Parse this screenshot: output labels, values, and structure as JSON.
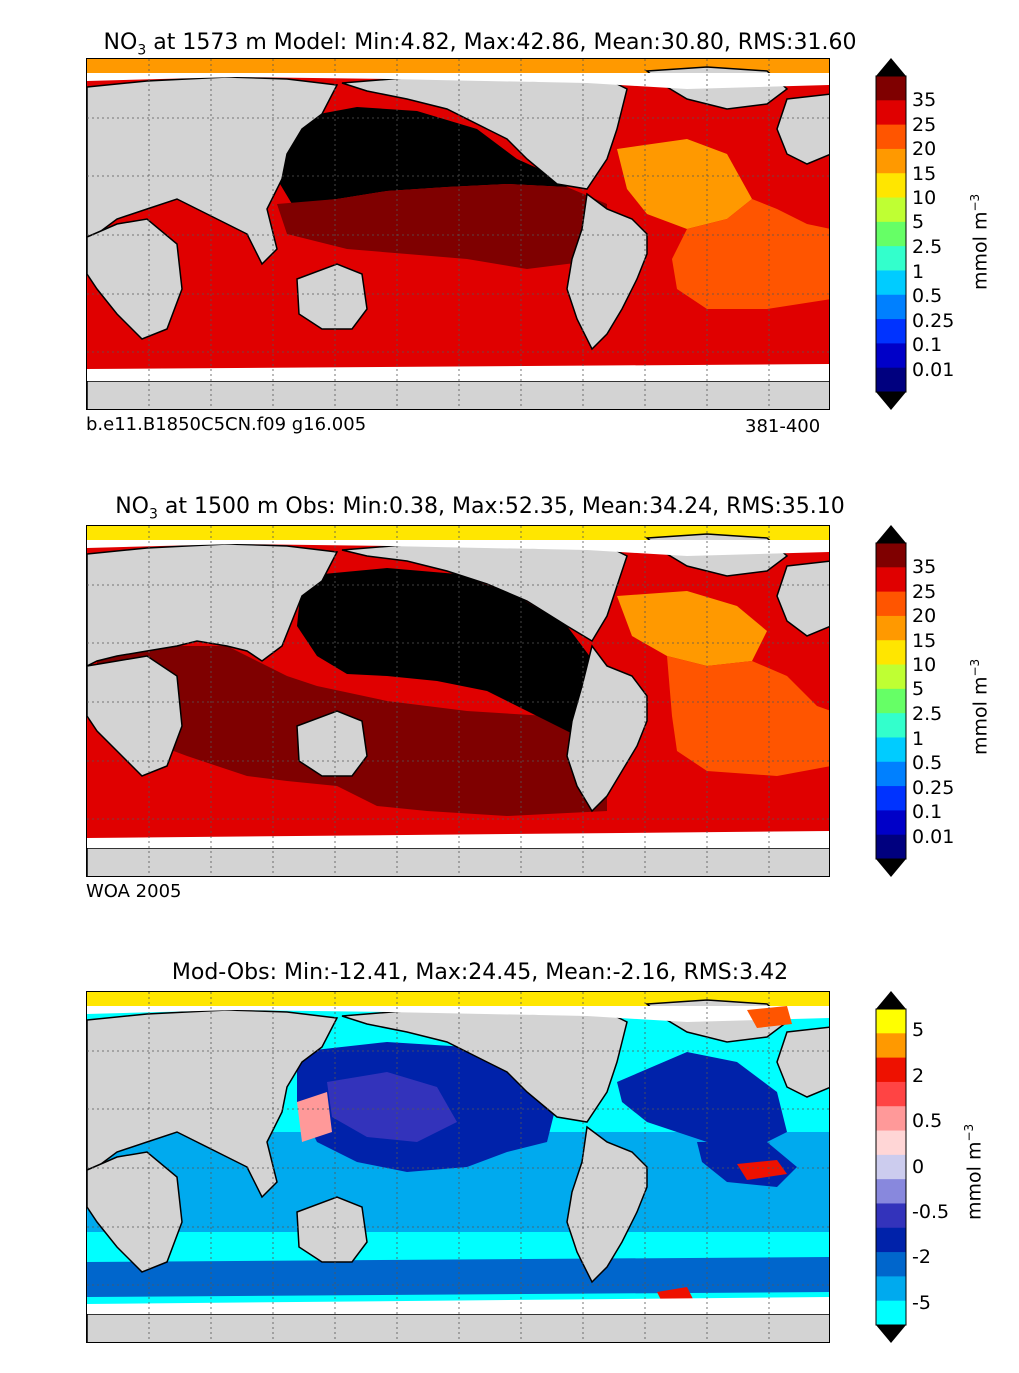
{
  "panels": [
    {
      "title_prefix": "NO",
      "title_sub": "3",
      "title_rest": " at 1573 m Model: Min:4.82, Max:42.86, Mean:30.80, RMS:31.60",
      "footer_left": "b.e11.B1850C5CN.f09 g16.005",
      "footer_right": "381-400",
      "colorbar_ticks": [
        "35",
        "25",
        "20",
        "15",
        "10",
        "5",
        "2.5",
        "1",
        "0.5",
        "0.25",
        "0.1",
        "0.01"
      ],
      "unit_text": "mmol m",
      "unit_sup": "−3"
    },
    {
      "title_prefix": "NO",
      "title_sub": "3",
      "title_rest": " at 1500 m Obs: Min:0.38, Max:52.35, Mean:34.24, RMS:35.10",
      "footer_left": "WOA 2005",
      "footer_right": "",
      "colorbar_ticks": [
        "35",
        "25",
        "20",
        "15",
        "10",
        "5",
        "2.5",
        "1",
        "0.5",
        "0.25",
        "0.1",
        "0.01"
      ],
      "unit_text": "mmol m",
      "unit_sup": "−3"
    },
    {
      "title_prefix": "",
      "title_sub": "",
      "title_rest": "Mod-Obs: Min:-12.41, Max:24.45, Mean:-2.16, RMS:3.42",
      "footer_left": "",
      "footer_right": "",
      "colorbar_ticks": [
        "5",
        "2",
        "0.5",
        "0",
        "-0.5",
        "-2",
        "-5"
      ],
      "unit_text": "mmol m",
      "unit_sup": "−3"
    }
  ],
  "colors": {
    "no3_scale": [
      "#00007f",
      "#0000c8",
      "#0033ff",
      "#0080ff",
      "#00ccff",
      "#33ffcc",
      "#66ff66",
      "#bfff33",
      "#ffe600",
      "#ff9900",
      "#ff5500",
      "#e00000",
      "#7f0000"
    ],
    "diff_scale": [
      "#00ffff",
      "#00aaee",
      "#0066cc",
      "#0022aa",
      "#3333bb",
      "#8888dd",
      "#ccccee",
      "#ffd6d6",
      "#ff9999",
      "#ff4444",
      "#ee1100",
      "#ff9900",
      "#ffff00"
    ],
    "land": "#d3d3d3",
    "missing": "#ffffff",
    "top_cap": "#000000",
    "bottom_cap": "#000000"
  }
}
